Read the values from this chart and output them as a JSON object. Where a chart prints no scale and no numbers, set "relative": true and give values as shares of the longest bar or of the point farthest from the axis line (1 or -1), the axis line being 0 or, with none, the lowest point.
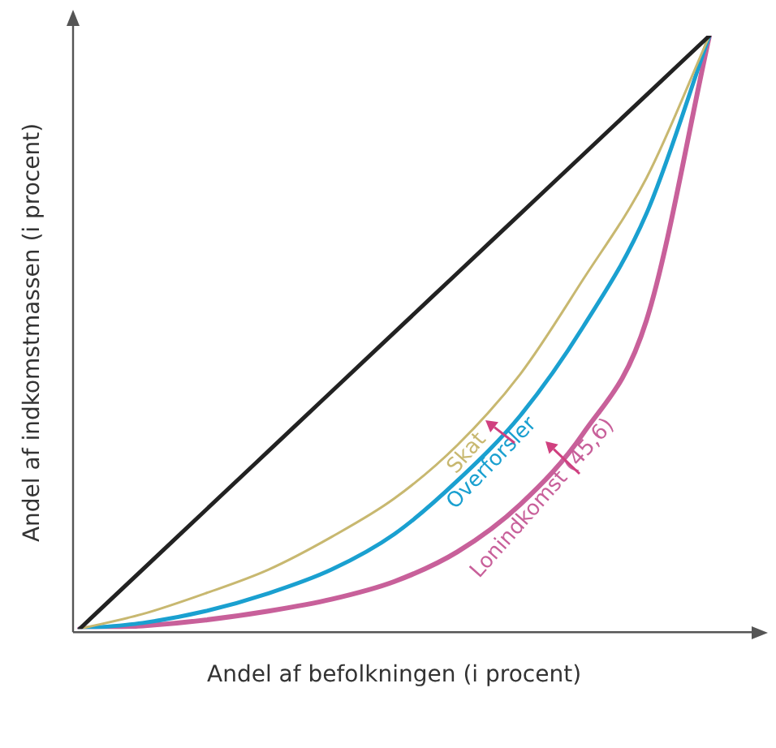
{
  "chart_data": {
    "type": "line",
    "relative": true,
    "xlabel": "Andel af befolkningen (i procent)",
    "ylabel": "Andel af indkomstmassen (i procent)",
    "categories": [
      null,
      null,
      null,
      null,
      null,
      null,
      null,
      null,
      null,
      null,
      null
    ],
    "series": [
      {
        "color": "#222222",
        "values": [
          0,
          0.1,
          0.2,
          0.3,
          0.4,
          0.5,
          0.6,
          0.7,
          0.8,
          0.9,
          1
        ]
      },
      {
        "name": "Skat",
        "color": "#c8b870",
        "values": [
          0,
          0.025,
          0.06,
          0.1,
          0.155,
          0.22,
          0.31,
          0.43,
          0.59,
          0.76,
          1
        ]
      },
      {
        "name": "Overforsler",
        "color": "#1aa0d0",
        "values": [
          0,
          0.01,
          0.03,
          0.06,
          0.1,
          0.16,
          0.25,
          0.36,
          0.51,
          0.7,
          1
        ]
      },
      {
        "name": "Lonindkomst (45,6)",
        "color": "#c8609a",
        "values": [
          0,
          0.005,
          0.015,
          0.03,
          0.05,
          0.08,
          0.13,
          0.21,
          0.33,
          0.52,
          1
        ]
      }
    ],
    "grid": false,
    "legend": false,
    "marker": "none",
    "line_style": "solid"
  }
}
